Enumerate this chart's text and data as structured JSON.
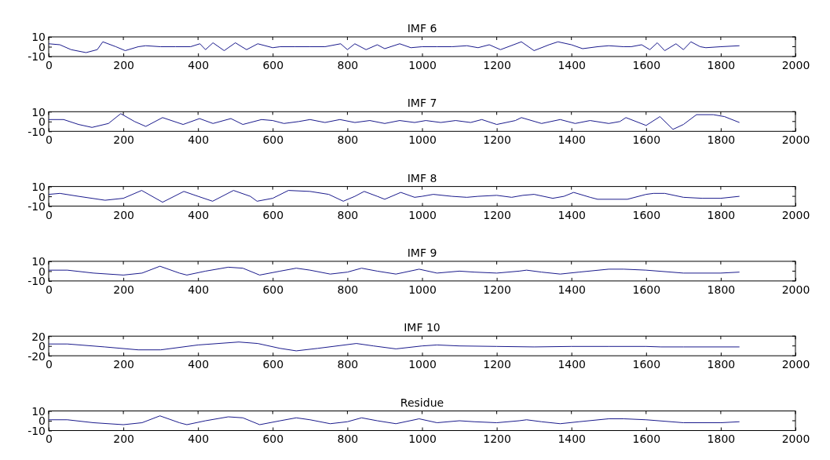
{
  "chart_data": [
    {
      "type": "line",
      "title": "IMF 6",
      "x": [
        0,
        30,
        60,
        100,
        130,
        145,
        180,
        205,
        240,
        260,
        300,
        340,
        380,
        405,
        420,
        440,
        470,
        500,
        530,
        560,
        600,
        620,
        660,
        700,
        740,
        782,
        800,
        820,
        850,
        880,
        900,
        940,
        970,
        1000,
        1040,
        1080,
        1120,
        1150,
        1180,
        1210,
        1266,
        1300,
        1340,
        1364,
        1400,
        1430,
        1470,
        1500,
        1540,
        1560,
        1588,
        1610,
        1630,
        1650,
        1680,
        1700,
        1720,
        1745,
        1760,
        1800,
        1850
      ],
      "values": [
        3,
        2,
        -3,
        -6,
        -3,
        5,
        0,
        -4,
        0,
        1,
        0,
        0,
        0,
        3,
        -3,
        4,
        -4,
        4,
        -3,
        3,
        -1,
        0,
        0,
        0,
        0,
        3,
        -3,
        3,
        -3,
        2,
        -2,
        3,
        -1,
        0,
        0,
        0,
        1,
        -1,
        2,
        -3,
        5,
        -4,
        2,
        5,
        2,
        -2,
        0,
        1,
        0,
        0,
        2,
        -3,
        4,
        -4,
        3,
        -3,
        5,
        0,
        -1,
        0,
        1
      ],
      "color": "#1a1a8c",
      "xlim": [
        0,
        2000
      ],
      "xticks": [
        0,
        200,
        400,
        600,
        800,
        1000,
        1200,
        1400,
        1600,
        1800,
        2000
      ],
      "ylim": [
        -10,
        10
      ],
      "yticks": [
        -10,
        0,
        10
      ],
      "grid": false
    },
    {
      "type": "line",
      "title": "IMF 7",
      "x": [
        0,
        40,
        80,
        116,
        160,
        193,
        230,
        260,
        305,
        360,
        404,
        440,
        488,
        520,
        570,
        600,
        630,
        670,
        700,
        740,
        780,
        820,
        860,
        900,
        940,
        980,
        1010,
        1050,
        1090,
        1130,
        1160,
        1200,
        1250,
        1266,
        1320,
        1370,
        1410,
        1450,
        1500,
        1530,
        1546,
        1600,
        1637,
        1672,
        1700,
        1735,
        1780,
        1810,
        1850
      ],
      "values": [
        2,
        2,
        -3,
        -6,
        -2,
        8,
        0,
        -5,
        4,
        -3,
        3,
        -2,
        3,
        -3,
        2,
        1,
        -2,
        0,
        2,
        -1,
        2,
        -1,
        1,
        -2,
        1,
        -1,
        1,
        -1,
        1,
        -1,
        2,
        -3,
        1,
        4,
        -2,
        2,
        -2,
        1,
        -2,
        0,
        4,
        -4,
        5,
        -8,
        -3,
        7,
        7,
        5,
        -1
      ],
      "color": "#1a1a8c",
      "xlim": [
        0,
        2000
      ],
      "xticks": [
        0,
        200,
        400,
        600,
        800,
        1000,
        1200,
        1400,
        1600,
        1800,
        2000
      ],
      "ylim": [
        -10,
        10
      ],
      "yticks": [
        -10,
        0,
        10
      ],
      "grid": false
    },
    {
      "type": "line",
      "title": "IMF 8",
      "x": [
        0,
        30,
        80,
        151,
        200,
        249,
        305,
        362,
        400,
        439,
        495,
        540,
        558,
        600,
        642,
        700,
        750,
        789,
        820,
        845,
        880,
        900,
        943,
        980,
        1000,
        1030,
        1080,
        1120,
        1150,
        1200,
        1240,
        1270,
        1300,
        1350,
        1380,
        1406,
        1450,
        1470,
        1550,
        1600,
        1620,
        1650,
        1700,
        1750,
        1800,
        1850
      ],
      "values": [
        2,
        3,
        0,
        -4,
        -2,
        6,
        -6,
        5,
        0,
        -5,
        6,
        0,
        -5,
        -2,
        6,
        5,
        2,
        -5,
        0,
        5,
        0,
        -3,
        4,
        -1,
        0,
        2,
        0,
        -1,
        0,
        1,
        -1,
        1,
        2,
        -2,
        0,
        4,
        -1,
        -3,
        -3,
        2,
        3,
        3,
        -1,
        -2,
        -2,
        0
      ],
      "color": "#1a1a8c",
      "xlim": [
        0,
        2000
      ],
      "xticks": [
        0,
        200,
        400,
        600,
        800,
        1000,
        1200,
        1400,
        1600,
        1800,
        2000
      ],
      "ylim": [
        -10,
        10
      ],
      "yticks": [
        -10,
        0,
        10
      ],
      "grid": false
    },
    {
      "type": "line",
      "title": "IMF 9",
      "x": [
        0,
        50,
        120,
        200,
        250,
        298,
        350,
        370,
        420,
        481,
        520,
        565,
        620,
        663,
        700,
        754,
        800,
        838,
        880,
        930,
        980,
        992,
        1040,
        1100,
        1140,
        1200,
        1260,
        1280,
        1320,
        1370,
        1420,
        1500,
        1540,
        1600,
        1700,
        1800,
        1850
      ],
      "values": [
        1,
        1,
        -2,
        -4,
        -2,
        5,
        -2,
        -4,
        0,
        4,
        3,
        -4,
        0,
        3,
        1,
        -3,
        -1,
        3,
        0,
        -3,
        1,
        2,
        -2,
        0,
        -1,
        -2,
        0,
        1,
        -1,
        -3,
        -1,
        2,
        2,
        1,
        -2,
        -2,
        -1
      ],
      "color": "#1a1a8c",
      "xlim": [
        0,
        2000
      ],
      "xticks": [
        0,
        200,
        400,
        600,
        800,
        1000,
        1200,
        1400,
        1600,
        1800,
        2000
      ],
      "ylim": [
        -10,
        10
      ],
      "yticks": [
        -10,
        0,
        10
      ],
      "grid": false
    },
    {
      "type": "line",
      "title": "IMF 10",
      "x": [
        0,
        50,
        150,
        240,
        300,
        400,
        509,
        560,
        620,
        663,
        720,
        824,
        870,
        930,
        1000,
        1040,
        1100,
        1200,
        1300,
        1400,
        1500,
        1600,
        1640,
        1700,
        1850
      ],
      "values": [
        4,
        4,
        -2,
        -8,
        -8,
        2,
        8,
        5,
        -5,
        -10,
        -5,
        5,
        0,
        -6,
        0,
        2,
        0,
        -1,
        -2,
        -1,
        -1,
        -1,
        -2,
        -2,
        -2
      ],
      "color": "#1a1a8c",
      "xlim": [
        0,
        2000
      ],
      "xticks": [
        0,
        200,
        400,
        600,
        800,
        1000,
        1200,
        1400,
        1600,
        1800,
        2000
      ],
      "ylim": [
        -20,
        20
      ],
      "yticks": [
        -20,
        0,
        20
      ],
      "grid": false
    },
    {
      "type": "line",
      "title": "Residue",
      "x": [
        0,
        50,
        120,
        200,
        250,
        298,
        350,
        370,
        420,
        481,
        520,
        565,
        620,
        663,
        700,
        754,
        800,
        838,
        880,
        930,
        980,
        992,
        1040,
        1100,
        1140,
        1200,
        1260,
        1280,
        1320,
        1370,
        1420,
        1500,
        1540,
        1600,
        1700,
        1800,
        1850
      ],
      "values": [
        1,
        1,
        -2,
        -4,
        -2,
        5,
        -2,
        -4,
        0,
        4,
        3,
        -4,
        0,
        3,
        1,
        -3,
        -1,
        3,
        0,
        -3,
        1,
        2,
        -2,
        0,
        -1,
        -2,
        0,
        1,
        -1,
        -3,
        -1,
        2,
        2,
        1,
        -2,
        -2,
        -1
      ],
      "color": "#1a1a8c",
      "xlim": [
        0,
        2000
      ],
      "xticks": [
        0,
        200,
        400,
        600,
        800,
        1000,
        1200,
        1400,
        1600,
        1800,
        2000
      ],
      "ylim": [
        -10,
        10
      ],
      "yticks": [
        -10,
        0,
        10
      ],
      "grid": false
    }
  ]
}
